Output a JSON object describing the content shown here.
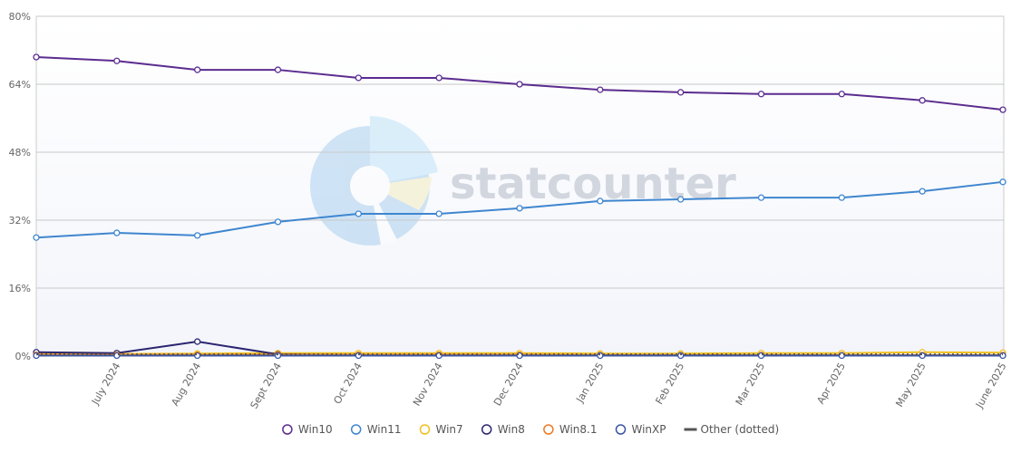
{
  "chart_data": {
    "type": "line",
    "watermark": "statcounter",
    "categories": [
      null,
      "July 2024",
      "Aug 2024",
      "Sept 2024",
      "Oct 2024",
      "Nov 2024",
      "Dec 2024",
      "Jan 2025",
      "Feb 2025",
      "Mar 2025",
      "Apr 2025",
      "May 2025",
      "June 2025"
    ],
    "ylim": [
      0,
      80
    ],
    "yticks": [
      {
        "value": 0,
        "label": "0%"
      },
      {
        "value": 16,
        "label": "16%"
      },
      {
        "value": 32,
        "label": "32%"
      },
      {
        "value": 48,
        "label": "48%"
      },
      {
        "value": 64,
        "label": "64%"
      },
      {
        "value": 80,
        "label": "80%"
      }
    ],
    "grid": true,
    "legend": "bottom",
    "series": [
      {
        "name": "Win10",
        "color": "#5b2c8f",
        "markers": true,
        "values": [
          70.4,
          69.5,
          67.4,
          67.4,
          65.5,
          65.5,
          64.0,
          62.7,
          62.1,
          61.7,
          61.7,
          60.2,
          58.0
        ]
      },
      {
        "name": "Win11",
        "color": "#3f86cf",
        "markers": true,
        "values": [
          27.9,
          29.0,
          28.4,
          31.6,
          33.5,
          33.5,
          34.8,
          36.5,
          36.9,
          37.3,
          37.3,
          38.8,
          41.0
        ]
      },
      {
        "name": "Win7",
        "color": "#f2c01e",
        "markers": true,
        "values": [
          0.5,
          0.5,
          0.6,
          0.7,
          0.7,
          0.7,
          0.7,
          0.6,
          0.6,
          0.7,
          0.7,
          0.9,
          0.8
        ]
      },
      {
        "name": "Win8",
        "color": "#2b2670",
        "markers": true,
        "values": [
          0.9,
          0.7,
          3.4,
          0.4,
          0.2,
          0.2,
          0.2,
          0.2,
          0.2,
          0.2,
          0.2,
          0.2,
          0.2
        ]
      },
      {
        "name": "Win8.1",
        "color": "#ee7a22",
        "markers": true,
        "values": [
          0.3,
          0.3,
          0.3,
          0.3,
          0.3,
          0.3,
          0.3,
          0.2,
          0.2,
          0.2,
          0.2,
          0.2,
          0.2
        ]
      },
      {
        "name": "WinXP",
        "color": "#3a56a5",
        "markers": true,
        "values": [
          0.1,
          0.1,
          0.1,
          0.1,
          0.1,
          0.1,
          0.1,
          0.1,
          0.1,
          0.1,
          0.1,
          0.1,
          0.1
        ]
      },
      {
        "name": "Other (dotted)",
        "color": "#555555",
        "markers": false,
        "line_style": "dotted",
        "values": [
          0.4,
          0.4,
          0.4,
          0.4,
          0.4,
          0.4,
          0.4,
          0.4,
          0.4,
          0.4,
          0.4,
          0.4,
          0.4
        ]
      }
    ]
  }
}
